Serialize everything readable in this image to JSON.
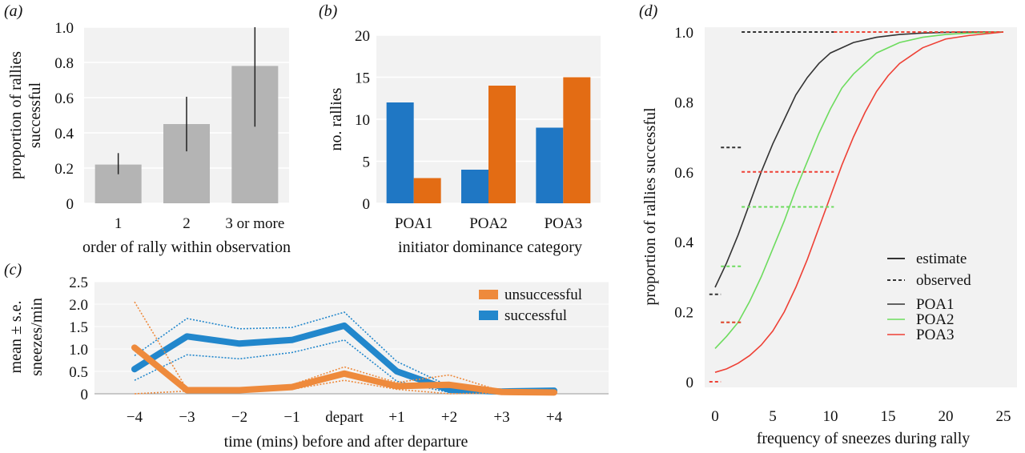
{
  "chart_data": [
    {
      "panel": "(a)",
      "type": "bar",
      "categories": [
        "1",
        "2",
        "3 or more"
      ],
      "values": [
        0.22,
        0.45,
        0.78
      ],
      "error_low": [
        0.165,
        0.295,
        0.435
      ],
      "error_high": [
        0.285,
        0.605,
        1.0
      ],
      "bar_color": "#b4b4b4",
      "xlabel": "order of rally within observation",
      "ylabel": [
        "proportion of rallies",
        "successful"
      ],
      "ylim": [
        0,
        1.0
      ],
      "yticks": [
        0,
        0.2,
        0.4,
        0.6,
        0.8,
        1.0
      ],
      "ytick_labels": [
        "0",
        "0.2",
        "0.4",
        "0.6",
        "0.8",
        "1.0"
      ]
    },
    {
      "panel": "(b)",
      "type": "bar",
      "categories": [
        "POA1",
        "POA2",
        "POA3"
      ],
      "series": [
        {
          "values": [
            12,
            4,
            9
          ],
          "color": "#1f77c4"
        },
        {
          "values": [
            3,
            14,
            15
          ],
          "color": "#e36c14"
        }
      ],
      "xlabel": "initiator dominance category",
      "ylabel": "no. rallies",
      "ylim": [
        0,
        20
      ],
      "yticks": [
        0,
        5,
        10,
        15,
        20
      ],
      "ytick_labels": [
        "0",
        "5",
        "10",
        "15",
        "20"
      ]
    },
    {
      "panel": "(c)",
      "type": "line",
      "x": [
        "−4",
        "−3",
        "−2",
        "−1",
        "depart",
        "+1",
        "+2",
        "+3",
        "+4"
      ],
      "series": [
        {
          "name": "unsuccessful",
          "color": "#ee8a3c",
          "values": [
            1.03,
            0.08,
            0.08,
            0.15,
            0.45,
            0.17,
            0.2,
            0.04,
            0.03
          ],
          "upper": [
            2.05,
            0.1,
            0.1,
            0.2,
            0.6,
            0.25,
            0.42,
            0.06,
            0.04
          ],
          "lower": [
            0.0,
            0.06,
            0.06,
            0.1,
            0.3,
            0.1,
            0.0,
            0.02,
            0.02
          ]
        },
        {
          "name": "successful",
          "color": "#2287cc",
          "values": [
            0.55,
            1.28,
            1.12,
            1.2,
            1.52,
            0.5,
            0.09,
            0.05,
            0.07
          ],
          "upper": [
            0.85,
            1.68,
            1.45,
            1.48,
            1.82,
            0.72,
            0.17,
            0.08,
            0.1
          ],
          "lower": [
            0.3,
            0.87,
            0.78,
            0.92,
            1.2,
            0.28,
            0.03,
            0.03,
            0.05
          ]
        }
      ],
      "xlabel": "time (mins) before and after departure",
      "ylabel": [
        "mean ± s.e.",
        "sneezes/min"
      ],
      "ylim": [
        0,
        2.5
      ],
      "yticks": [
        0,
        0.5,
        1.0,
        1.5,
        2.0,
        2.5
      ],
      "ytick_labels": [
        "0",
        "0.5",
        "1.0",
        "1.5",
        "2.0",
        "2.5"
      ],
      "legend": "top-right"
    },
    {
      "panel": "(d)",
      "type": "line",
      "xlabel": "frequency of sneezes during rally",
      "ylabel": "proportion of rallies successful",
      "xlim": [
        0,
        25
      ],
      "ylim": [
        0,
        1.0
      ],
      "xticks": [
        0,
        5,
        10,
        15,
        20,
        25
      ],
      "xtick_labels": [
        "0",
        "5",
        "10",
        "15",
        "20",
        "25"
      ],
      "yticks": [
        0,
        0.2,
        0.4,
        0.6,
        0.8,
        1.0
      ],
      "ytick_labels": [
        "0",
        "0.2",
        "0.4",
        "0.6",
        "0.8",
        "1.0"
      ],
      "series": [
        {
          "name": "POA1",
          "color": "#333333",
          "estimate": {
            "x": [
              0,
              1,
              2,
              3,
              4,
              5,
              6,
              7,
              8,
              9,
              10,
              12,
              14,
              16,
              18,
              20,
              22,
              25
            ],
            "y": [
              0.27,
              0.34,
              0.42,
              0.51,
              0.6,
              0.68,
              0.75,
              0.82,
              0.87,
              0.91,
              0.94,
              0.97,
              0.985,
              0.993,
              0.997,
              0.999,
              1.0,
              1.0
            ]
          },
          "observed": [
            {
              "x": [
                -0.5,
                0.5
              ],
              "y": 0.25
            },
            {
              "x": [
                0.5,
                2.3
              ],
              "y": 0.67
            },
            {
              "x": [
                2.3,
                10.3
              ],
              "y": 1.0
            }
          ]
        },
        {
          "name": "POA2",
          "color": "#6ddc5e",
          "estimate": {
            "x": [
              0,
              1,
              2,
              3,
              4,
              5,
              6,
              7,
              8,
              9,
              10,
              11,
              12,
              14,
              16,
              18,
              20,
              22,
              25
            ],
            "y": [
              0.095,
              0.13,
              0.17,
              0.23,
              0.3,
              0.38,
              0.46,
              0.55,
              0.63,
              0.71,
              0.78,
              0.84,
              0.88,
              0.94,
              0.97,
              0.985,
              0.993,
              0.997,
              1.0
            ]
          },
          "observed": [
            {
              "x": [
                0.5,
                2.3
              ],
              "y": 0.17
            },
            {
              "x": [
                0.5,
                2.3
              ],
              "y": 0.33
            },
            {
              "x": [
                2.3,
                10.3
              ],
              "y": 0.5
            },
            {
              "x": [
                10.3,
                25
              ],
              "y": 1.0
            }
          ]
        },
        {
          "name": "POA3",
          "color": "#ee4035",
          "estimate": {
            "x": [
              0,
              1,
              2,
              3,
              4,
              5,
              6,
              7,
              8,
              9,
              10,
              11,
              12,
              13,
              14,
              15,
              16,
              18,
              20,
              22,
              25
            ],
            "y": [
              0.027,
              0.037,
              0.053,
              0.075,
              0.105,
              0.145,
              0.2,
              0.27,
              0.35,
              0.44,
              0.53,
              0.62,
              0.7,
              0.77,
              0.83,
              0.875,
              0.91,
              0.955,
              0.98,
              0.99,
              1.0
            ]
          },
          "observed": [
            {
              "x": [
                -0.5,
                0.5
              ],
              "y": 0.0
            },
            {
              "x": [
                0.5,
                2.3
              ],
              "y": 0.17
            },
            {
              "x": [
                2.3,
                10.3
              ],
              "y": 0.6
            },
            {
              "x": [
                10.3,
                25
              ],
              "y": 1.0
            }
          ]
        }
      ],
      "legend_lines": [
        "estimate",
        "observed"
      ],
      "legend": "center-right"
    }
  ]
}
